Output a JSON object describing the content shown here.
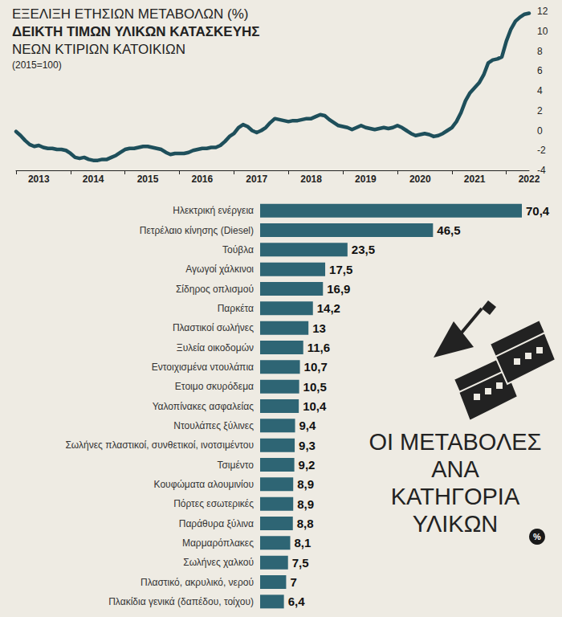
{
  "chart_data": [
    {
      "type": "line",
      "title": "ΕΞΕΛΙΞΗ ΕΤΗΣΙΩΝ ΜΕΤΑΒΟΛΩΝ (%)",
      "subtitle": [
        "ΔΕΙΚΤΗ ΤΙΜΩΝ ΥΛΙΚΩΝ ΚΑΤΑΣΚΕΥΗΣ",
        "ΝΕΩΝ ΚΤΙΡΙΩΝ ΚΑΤΟΙΚΙΩΝ",
        "(2015=100)"
      ],
      "categories": [
        null,
        null,
        null,
        null,
        null,
        "2013",
        null,
        null,
        null,
        null,
        null,
        null,
        null,
        null,
        null,
        null,
        null,
        "2014",
        null,
        null,
        null,
        null,
        null,
        null,
        null,
        null,
        null,
        null,
        null,
        "2015",
        null,
        null,
        null,
        null,
        null,
        null,
        null,
        null,
        null,
        null,
        null,
        "2016",
        null,
        null,
        null,
        null,
        null,
        null,
        null,
        null,
        null,
        null,
        null,
        "2017",
        null,
        null,
        null,
        null,
        null,
        null,
        null,
        null,
        null,
        null,
        null,
        "2018",
        null,
        null,
        null,
        null,
        null,
        null,
        null,
        null,
        null,
        null,
        null,
        "2019",
        null,
        null,
        null,
        null,
        null,
        null,
        null,
        null,
        null,
        null,
        null,
        "2020",
        null,
        null,
        null,
        null,
        null,
        null,
        null,
        null,
        null,
        null,
        null,
        "2021",
        null,
        null,
        null,
        null,
        null,
        null,
        null,
        null,
        null,
        null,
        null,
        "2022"
      ],
      "values": [
        -0.1,
        -0.5,
        -1.0,
        -1.4,
        -1.6,
        -1.5,
        -1.7,
        -1.8,
        -1.8,
        -1.9,
        -1.9,
        -2.0,
        -2.3,
        -2.7,
        -2.8,
        -2.7,
        -2.9,
        -3.0,
        -3.0,
        -2.9,
        -2.9,
        -2.7,
        -2.5,
        -2.2,
        -1.9,
        -1.8,
        -1.8,
        -1.7,
        -1.6,
        -1.6,
        -1.7,
        -1.8,
        -1.9,
        -2.2,
        -2.4,
        -2.3,
        -2.3,
        -2.3,
        -2.2,
        -2.0,
        -1.9,
        -1.8,
        -1.8,
        -1.7,
        -1.7,
        -1.5,
        -1.1,
        -0.6,
        -0.3,
        0.3,
        0.6,
        0.4,
        0.0,
        -0.2,
        0.0,
        0.3,
        0.8,
        1.2,
        1.1,
        1.0,
        0.9,
        1.0,
        1.0,
        1.1,
        1.2,
        1.2,
        1.4,
        1.6,
        1.5,
        1.1,
        0.8,
        0.5,
        0.4,
        0.3,
        0.1,
        0.3,
        0.5,
        0.3,
        0.2,
        0.1,
        0.2,
        0.3,
        0.2,
        0.3,
        0.5,
        0.3,
        0.0,
        -0.3,
        -0.5,
        -0.4,
        -0.3,
        -0.4,
        -0.6,
        -0.5,
        -0.3,
        0.0,
        0.3,
        0.9,
        1.8,
        3.0,
        3.8,
        4.3,
        4.8,
        5.6,
        6.8,
        7.1,
        7.2,
        7.4,
        9.0,
        10.2,
        11.0,
        11.4,
        11.7,
        11.8
      ],
      "color": "#1e4f5b",
      "ylim": [
        -4,
        12
      ],
      "yticks": [
        -4,
        -2,
        0,
        2,
        4,
        6,
        8,
        10,
        12
      ],
      "grid": false
    },
    {
      "type": "bar",
      "orientation": "horizontal",
      "title": "ΟΙ ΜΕΤΑΒΟΛΕΣ\nΑΝΑ\nΚΑΤΗΓΟΡΙΑ\nΥΛΙΚΩΝ",
      "annotations": [
        "%"
      ],
      "categories": [
        "Ηλεκτρική ενέργεια",
        "Πετρέλαιο κίνησης (Diesel)",
        "Τούβλα",
        "Αγωγοί χάλκινοι",
        "Σίδηρος οπλισμού",
        "Παρκέτα",
        "Πλαστικοί σωλήνες",
        "Ξυλεία οικοδομών",
        "Εντοιχισμένα ντουλάπια",
        "Ετοιμο σκυρόδεμα",
        "Υαλοπίνακες ασφαλείας",
        "Ντουλάπες ξύλινες",
        "Σωλήνες πλαστικοί, συνθετικοί, ινοτσιμέντου",
        "Τσιμέντο",
        "Κουφώματα αλουμινίου",
        "Πόρτες εσωτερικές",
        "Παράθυρα ξύλινα",
        "Μαρμαρόπλακες",
        "Σωλήνες χαλκού",
        "Πλαστικό, ακρυλικό, νερού",
        "Πλακίδια γενικά (δαπέδου, τοίχου)"
      ],
      "values": [
        70.4,
        46.5,
        23.5,
        17.5,
        16.9,
        14.2,
        13,
        11.6,
        10.7,
        10.5,
        10.4,
        9.4,
        9.3,
        9.2,
        8.9,
        8.9,
        8.8,
        8.1,
        7.5,
        7,
        6.4
      ],
      "value_labels": [
        "70,4",
        "46,5",
        "23,5",
        "17,5",
        "16,9",
        "14,2",
        "13",
        "11,6",
        "10,7",
        "10,5",
        "10,4",
        "9,4",
        "9,3",
        "9,2",
        "8,9",
        "8,9",
        "8,8",
        "8,1",
        "7,5",
        "7",
        "6,4"
      ],
      "color": "#2e6574",
      "xlim": [
        0,
        70.4
      ],
      "data_labels": true,
      "tick_labels": "y",
      "grid": false
    }
  ]
}
